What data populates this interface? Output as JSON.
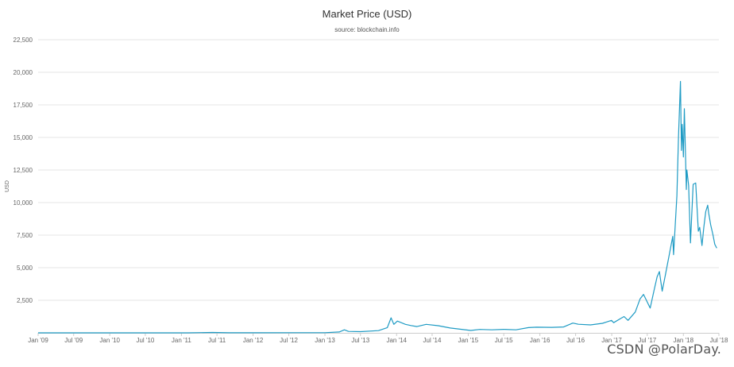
{
  "chart_data": {
    "type": "line",
    "title": "Market Price (USD)",
    "subtitle": "source: blockchain.info",
    "xlabel": "",
    "ylabel": "USD",
    "ylim": [
      0,
      22500
    ],
    "xlim": [
      "2009-01-01",
      "2018-07-01"
    ],
    "yticks": [
      2500,
      5000,
      7500,
      10000,
      12500,
      15000,
      17500,
      20000,
      22500
    ],
    "yticklabels": [
      "2,500",
      "5,000",
      "7,500",
      "10,000",
      "12,500",
      "15,000",
      "17,500",
      "20,000",
      "22,500"
    ],
    "xticks": [
      "2009-01-01",
      "2009-07-01",
      "2010-01-01",
      "2010-07-01",
      "2011-01-01",
      "2011-07-01",
      "2012-01-01",
      "2012-07-01",
      "2013-01-01",
      "2013-07-01",
      "2014-01-01",
      "2014-07-01",
      "2015-01-01",
      "2015-07-01",
      "2016-01-01",
      "2016-07-01",
      "2017-01-01",
      "2017-07-01",
      "2018-01-01",
      "2018-07-01"
    ],
    "xticklabels": [
      "Jan '09",
      "Jul '09",
      "Jan '10",
      "Jul '10",
      "Jan '11",
      "Jul '11",
      "Jan '12",
      "Jul '12",
      "Jan '13",
      "Jul '13",
      "Jan '14",
      "Jul '14",
      "Jan '15",
      "Jul '15",
      "Jan '16",
      "Jul '16",
      "Jan '17",
      "Jul '17",
      "Jan '18",
      "Jul '18"
    ],
    "grid": true,
    "legend": "none",
    "series_color": "#1f9bc4",
    "series": [
      {
        "x": [
          "2009-01-01",
          "2010-07-15",
          "2011-02-01",
          "2011-06-08",
          "2011-09-01",
          "2012-01-01",
          "2012-08-15",
          "2013-01-01",
          "2013-03-15",
          "2013-04-10",
          "2013-05-01",
          "2013-07-01",
          "2013-10-01",
          "2013-11-15",
          "2013-12-04",
          "2013-12-18",
          "2014-01-05",
          "2014-02-15",
          "2014-03-15",
          "2014-04-15",
          "2014-06-01",
          "2014-08-01",
          "2014-10-01",
          "2015-01-14",
          "2015-03-01",
          "2015-05-01",
          "2015-07-01",
          "2015-09-01",
          "2015-11-04",
          "2015-12-15",
          "2016-03-01",
          "2016-05-01",
          "2016-06-17",
          "2016-07-15",
          "2016-09-15",
          "2016-11-15",
          "2016-12-31",
          "2017-01-11",
          "2017-02-15",
          "2017-03-05",
          "2017-03-25",
          "2017-05-01",
          "2017-05-25",
          "2017-06-12",
          "2017-07-16",
          "2017-08-05",
          "2017-08-20",
          "2017-09-01",
          "2017-09-15",
          "2017-10-01",
          "2017-10-20",
          "2017-11-08",
          "2017-11-12",
          "2017-11-29",
          "2017-12-07",
          "2017-12-17",
          "2017-12-22",
          "2017-12-26",
          "2018-01-01",
          "2018-01-06",
          "2018-01-16",
          "2018-01-19",
          "2018-01-28",
          "2018-02-06",
          "2018-02-12",
          "2018-02-20",
          "2018-03-05",
          "2018-03-18",
          "2018-03-25",
          "2018-04-06",
          "2018-04-15",
          "2018-04-25",
          "2018-05-05",
          "2018-05-10",
          "2018-05-20",
          "2018-06-01",
          "2018-06-10",
          "2018-06-20"
        ],
        "y": [
          0,
          0,
          1,
          30,
          5,
          6,
          11,
          13,
          70,
          230,
          110,
          90,
          170,
          400,
          1150,
          650,
          900,
          650,
          560,
          480,
          650,
          550,
          370,
          180,
          260,
          230,
          270,
          230,
          400,
          430,
          420,
          450,
          750,
          660,
          610,
          730,
          960,
          780,
          1100,
          1250,
          960,
          1600,
          2600,
          2950,
          1900,
          3300,
          4300,
          4700,
          3200,
          4400,
          5900,
          7400,
          6000,
          10500,
          15000,
          19300,
          14000,
          16000,
          13500,
          17200,
          11000,
          12500,
          11300,
          6900,
          8900,
          11400,
          11500,
          7800,
          8100,
          6700,
          8100,
          9300,
          9800,
          9200,
          8300,
          7500,
          6800,
          6500
        ]
      }
    ]
  },
  "watermark": "CSDN @PolarDay."
}
